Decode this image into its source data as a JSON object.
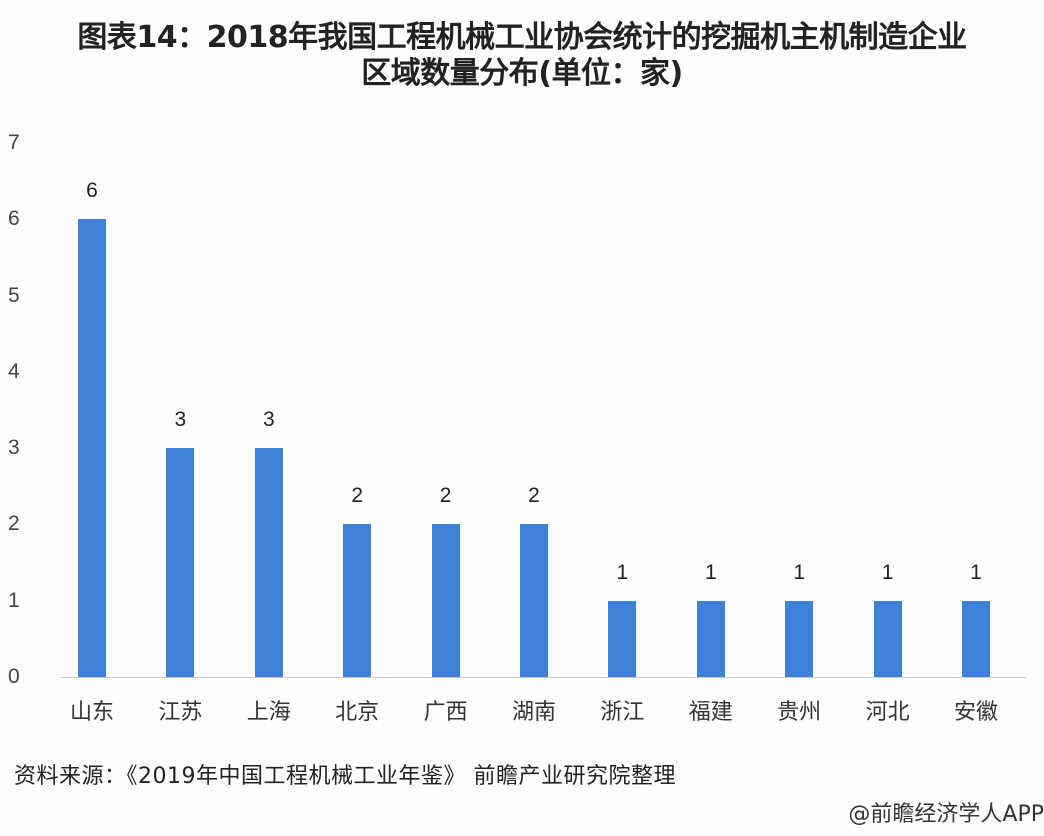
{
  "title": {
    "line1": "图表14：2018年我国工程机械工业协会统计的挖掘机主机制造企业",
    "line2": "区域数量分布(单位：家)"
  },
  "chart_data": {
    "type": "bar",
    "title": "图表14：2018年我国工程机械工业协会统计的挖掘机主机制造企业区域数量分布(单位：家)",
    "xlabel": "",
    "ylabel": "",
    "categories": [
      "山东",
      "江苏",
      "上海",
      "北京",
      "广西",
      "湖南",
      "浙江",
      "福建",
      "贵州",
      "河北",
      "安徽"
    ],
    "values": [
      6,
      3,
      3,
      2,
      2,
      2,
      1,
      1,
      1,
      1,
      1
    ],
    "ylim": [
      0,
      7
    ],
    "yticks": [
      "0",
      "1",
      "2",
      "3",
      "4",
      "5",
      "6",
      "7"
    ],
    "grid": false,
    "legend": null,
    "data_labels": true,
    "bar_color": "#3d82d6"
  },
  "footer": {
    "source": "资料来源：《2019年中国工程机械工业年鉴》 前瞻产业研究院整理",
    "watermark": "@前瞻经济学人APP"
  }
}
